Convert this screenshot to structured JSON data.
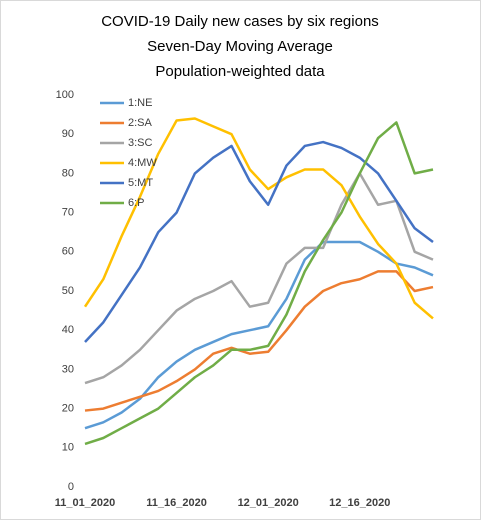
{
  "chart_data": {
    "type": "line",
    "title": [
      "COVID-19 Daily new cases by six regions",
      "Seven-Day Moving Average",
      "Population-weighted data"
    ],
    "categories": [
      "11_01_2020",
      null,
      null,
      null,
      null,
      "11_16_2020",
      null,
      null,
      null,
      null,
      "12_01_2020",
      null,
      null,
      null,
      null,
      "12_16_2020",
      null,
      null,
      null,
      null
    ],
    "series": [
      {
        "name": "1:NE",
        "color": "#5b9bd5",
        "values": [
          15,
          16.5,
          19,
          22.5,
          28,
          32,
          35,
          37,
          39,
          40,
          41,
          48,
          58,
          62.5,
          62.5,
          62.5,
          60,
          57,
          56,
          54
        ]
      },
      {
        "name": "2:SA",
        "color": "#ed7d31",
        "values": [
          19.5,
          20,
          21.5,
          23,
          24.5,
          27,
          30,
          34,
          35.5,
          34,
          34.5,
          40,
          46,
          50,
          52,
          53,
          55,
          55,
          50,
          51
        ]
      },
      {
        "name": "3:SC",
        "color": "#a5a5a5",
        "values": [
          26.5,
          28,
          31,
          35,
          40,
          45,
          48,
          50,
          52.5,
          46,
          47,
          57,
          61,
          61,
          72,
          80,
          72,
          73,
          60,
          58
        ]
      },
      {
        "name": "4:MW",
        "color": "#ffc000",
        "values": [
          46,
          53,
          64,
          74,
          85,
          93.5,
          94,
          92,
          90,
          81,
          76,
          79,
          81,
          81,
          77,
          69,
          62,
          57,
          47,
          43
        ]
      },
      {
        "name": "5:MT",
        "color": "#4472c4",
        "values": [
          37,
          42,
          49,
          56,
          65,
          70,
          80,
          84,
          87,
          78,
          72,
          82,
          87,
          88,
          86.5,
          84,
          80,
          73,
          66,
          62.5
        ]
      },
      {
        "name": "6:P",
        "color": "#70ad47",
        "values": [
          11,
          12.5,
          15,
          17.5,
          20,
          24,
          28,
          31,
          35,
          35,
          36,
          44,
          55,
          63,
          70,
          80,
          89,
          93,
          80,
          81
        ]
      }
    ],
    "ylim": [
      0,
      100
    ],
    "yticks": [
      0,
      10,
      20,
      30,
      40,
      50,
      60,
      70,
      80,
      90,
      100
    ],
    "grid": false,
    "legend": "upper-left"
  }
}
